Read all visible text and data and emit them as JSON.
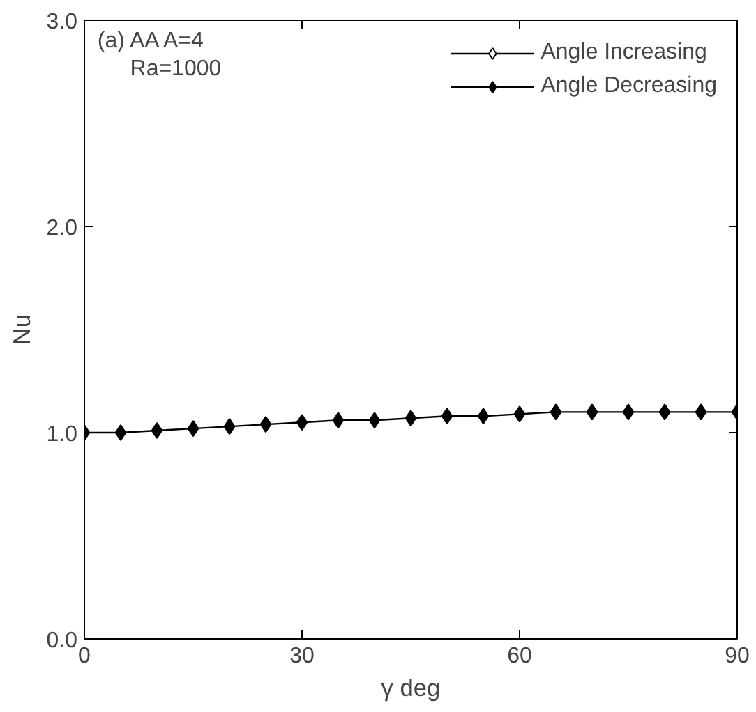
{
  "chart_data": {
    "type": "line",
    "xlabel": "γ deg",
    "ylabel": "Nu",
    "x": [
      0,
      5,
      10,
      15,
      20,
      25,
      30,
      35,
      40,
      45,
      50,
      55,
      60,
      65,
      70,
      75,
      80,
      85,
      90
    ],
    "series": [
      {
        "name": "Angle Increasing",
        "color": "#000000",
        "marker": "diamond",
        "values": [
          null,
          null,
          null,
          null,
          null,
          null,
          null,
          null,
          null,
          null,
          null,
          null,
          null,
          null,
          null,
          null,
          null,
          null,
          null
        ]
      },
      {
        "name": "Angle Decreasing",
        "color": "#000000",
        "marker": "diamond",
        "values": [
          1.0,
          1.0,
          1.01,
          1.02,
          1.03,
          1.04,
          1.05,
          1.06,
          1.06,
          1.07,
          1.08,
          1.08,
          1.09,
          1.1,
          1.1,
          1.1,
          1.1,
          1.1,
          1.1
        ]
      }
    ],
    "xlim": [
      0,
      90
    ],
    "xticks": [
      0,
      30,
      60,
      90
    ],
    "ylim": [
      0,
      3
    ],
    "yticks": [
      {
        "value": 0,
        "label": "0.0"
      },
      {
        "value": 1,
        "label": "1.0"
      },
      {
        "value": 2,
        "label": "2.0"
      },
      {
        "value": 3,
        "label": "3.0"
      }
    ],
    "annotations": [
      "(a) AA A=4",
      "Ra=1000"
    ],
    "legend": "top right",
    "grid": false,
    "line_style": "solid"
  }
}
